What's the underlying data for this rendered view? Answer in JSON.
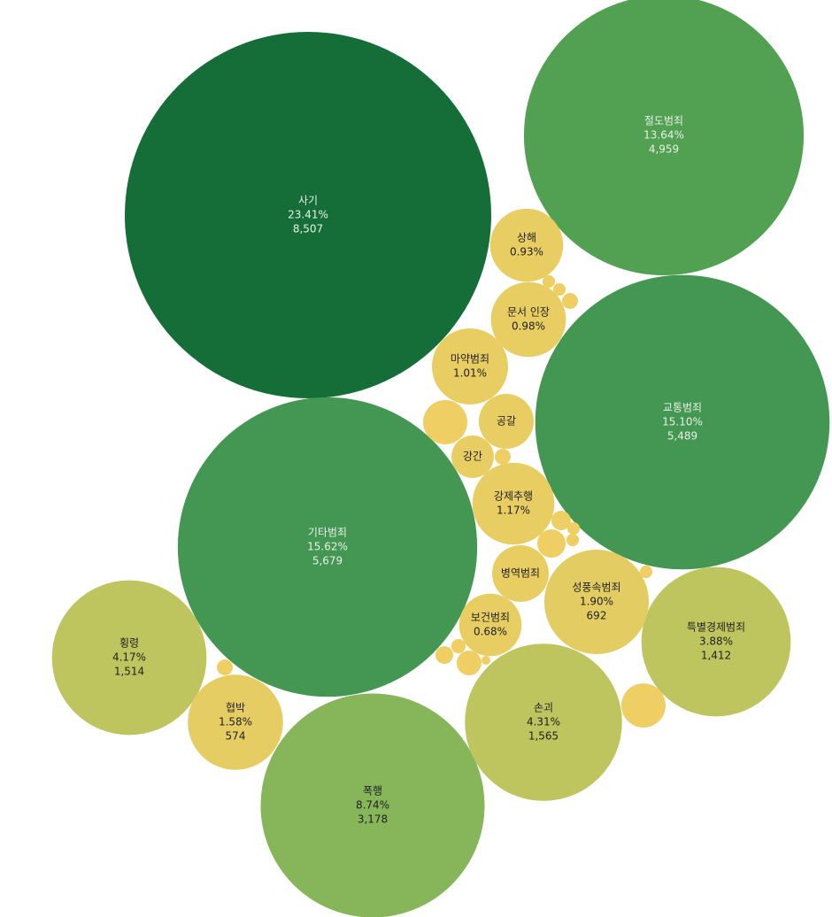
{
  "chart_data": {
    "type": "bubble",
    "categories": [
      "사기",
      "절도범죄",
      "교통범죄",
      "기타범죄",
      "폭행",
      "손괴",
      "횡령",
      "특별경제범죄",
      "성풍속범죄",
      "협박",
      "상해",
      "문서 인장",
      "마약범죄",
      "보건범죄",
      "강제추행",
      "공갈",
      "강간",
      "병역범죄",
      null,
      null,
      null,
      null,
      null,
      null,
      null,
      null,
      null,
      null,
      null,
      null,
      null,
      null,
      null,
      null
    ],
    "values": [
      8507,
      4959,
      5489,
      5679,
      3178,
      1565,
      1514,
      1412,
      692,
      574,
      338,
      356,
      367,
      247,
      425,
      191,
      114,
      203,
      124,
      124,
      16,
      10,
      10,
      16,
      24,
      51,
      10,
      20,
      13,
      39,
      16,
      10,
      5,
      10
    ],
    "value_labels": [
      "8,507",
      "4,959",
      "5,489",
      "5,679",
      "3,178",
      "1,565",
      "1,514",
      "1,412",
      "692",
      "574",
      null,
      null,
      null,
      null,
      null,
      null,
      null,
      null,
      null,
      null,
      null,
      null,
      null,
      null,
      null,
      null,
      null,
      null,
      null,
      null,
      null,
      null,
      null,
      null
    ],
    "percent_labels": [
      "23.41%",
      "13.64%",
      "15.10%",
      "15.62%",
      "8.74%",
      "4.31%",
      "4.17%",
      "3.88%",
      "1.90%",
      "1.58%",
      "0.93%",
      "0.98%",
      "1.01%",
      "0.68%",
      "1.17%",
      null,
      null,
      null,
      null,
      null,
      null,
      null,
      null,
      null,
      null,
      null,
      null,
      null,
      null,
      null,
      null,
      null,
      null,
      null
    ],
    "colors": [
      "#156e37",
      "#52a052",
      "#449752",
      "#449752",
      "#87b55a",
      "#bec45e",
      "#bec45e",
      "#bec45e",
      "#e3cc62",
      "#e6cd63",
      "#e8cd63",
      "#e8cd63",
      "#e8cd63",
      "#e8cd63",
      "#e8cd63",
      "#e8cd63",
      "#e8cd63",
      "#e8cd63",
      "#efcf64",
      "#efcf64",
      "#efcf64",
      "#efcf64",
      "#efcf64",
      "#efcf64",
      "#efcf64",
      "#efcf64",
      "#efcf64",
      "#efcf64",
      "#efcf64",
      "#efcf64",
      "#efcf64",
      "#efcf64",
      "#efcf64",
      "#efcf64"
    ]
  }
}
